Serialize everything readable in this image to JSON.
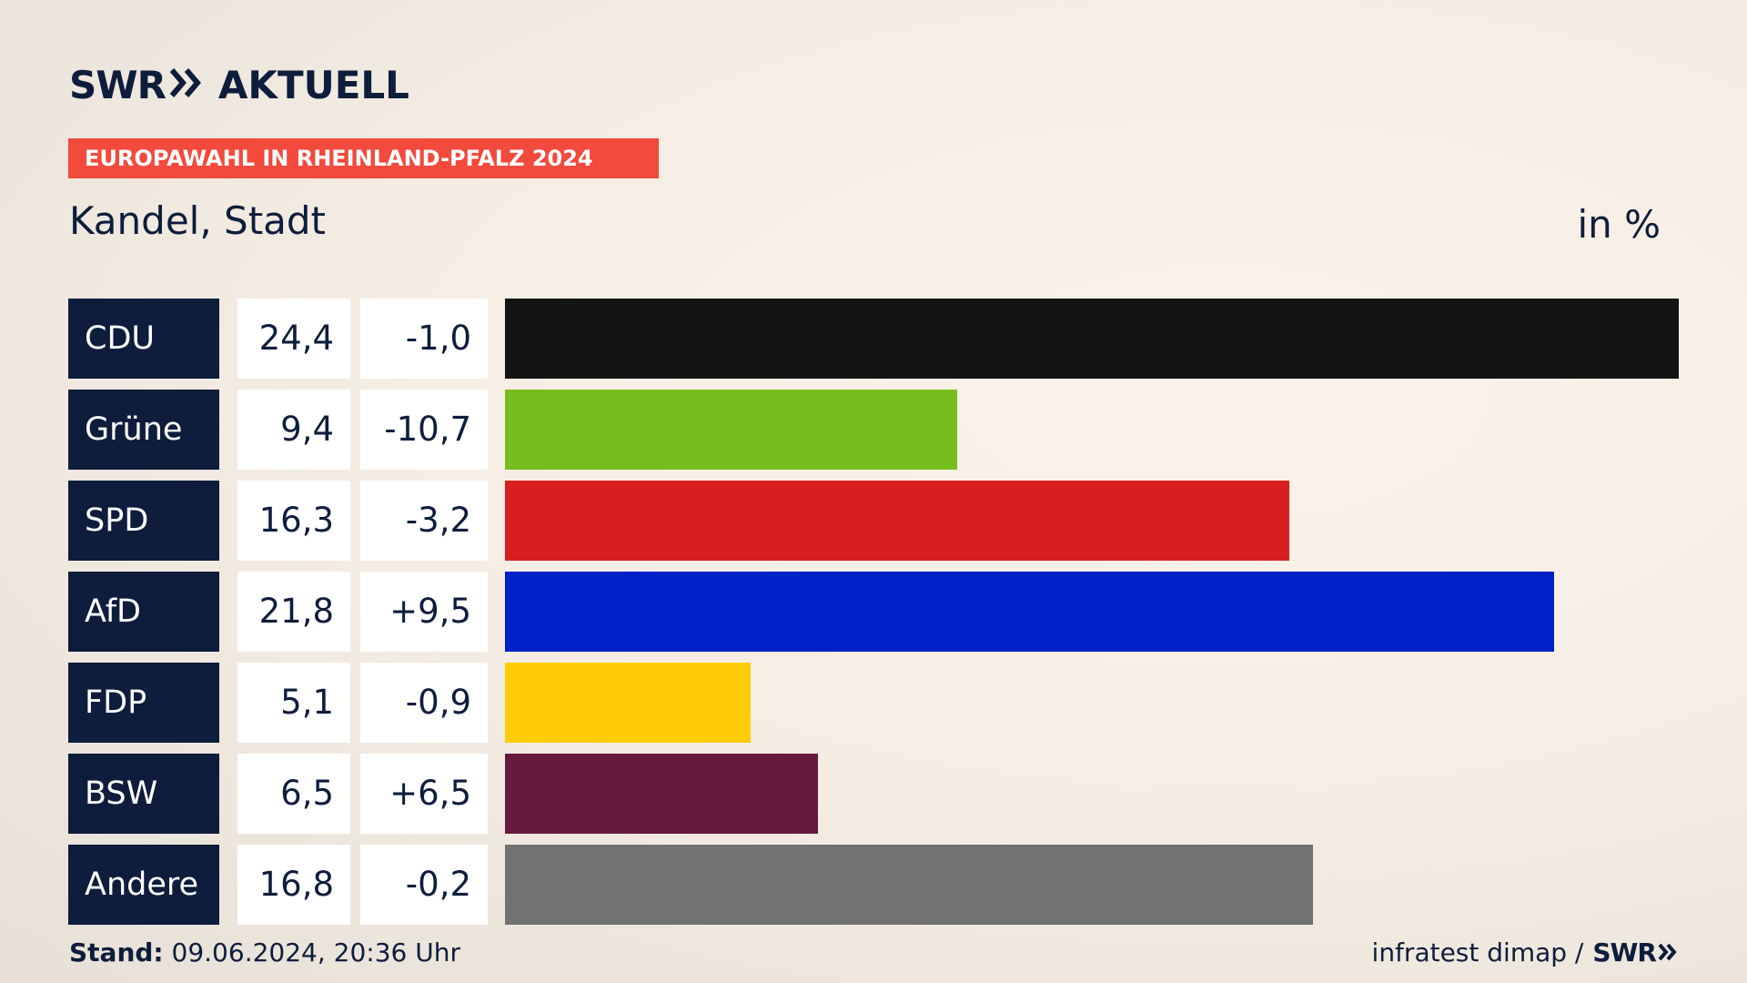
{
  "header": {
    "logo_swr": "SWR",
    "logo_arrows_icon": "double-chevron-right-icon",
    "logo_aktuell": "AKTUELL",
    "banner": "EUROPAWAHL IN RHEINLAND-PFALZ 2024",
    "subtitle": "Kandel, Stadt",
    "unit": "in %"
  },
  "footer": {
    "stand_label": "Stand:",
    "stand_value": "09.06.2024, 20:36 Uhr",
    "source": "infratest dimap /",
    "source_logo": "SWR"
  },
  "colors": {
    "navy": "#0e1d3c",
    "banner": "#f24a3d"
  },
  "chart_data": {
    "type": "bar",
    "orientation": "horizontal",
    "title": "Kandel, Stadt",
    "unit": "in %",
    "categories": [
      "CDU",
      "Grüne",
      "SPD",
      "AfD",
      "FDP",
      "BSW",
      "Andere"
    ],
    "values": [
      24.4,
      9.4,
      16.3,
      21.8,
      5.1,
      6.5,
      16.8
    ],
    "value_labels": [
      "24,4",
      "9,4",
      "16,3",
      "21,8",
      "5,1",
      "6,5",
      "16,8"
    ],
    "diff_labels": [
      "-1,0",
      "-10,7",
      "-3,2",
      "+9,5",
      "-0,9",
      "+6,5",
      "-0,2"
    ],
    "bar_colors": [
      "#141414",
      "#78bd1e",
      "#d71f1f",
      "#0021c8",
      "#ffcc06",
      "#661a40",
      "#707173"
    ],
    "xlim": [
      0,
      24.4
    ],
    "grid": false,
    "legend": "none"
  }
}
